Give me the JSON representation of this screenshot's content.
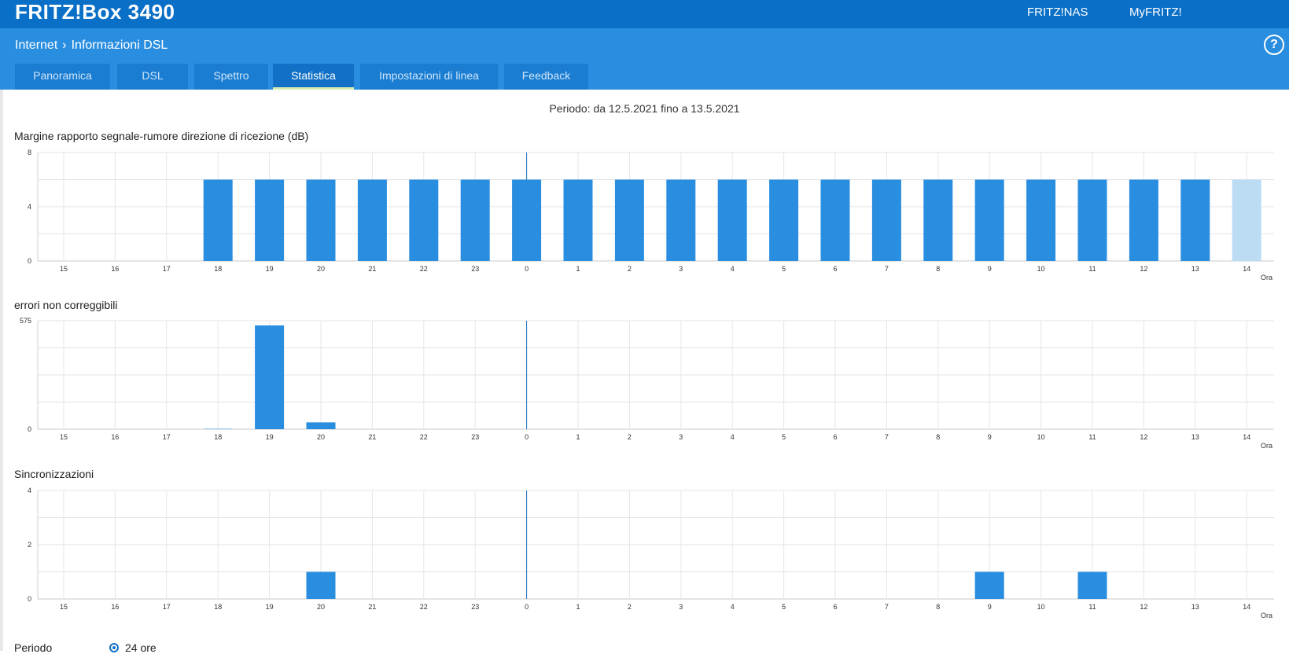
{
  "header": {
    "brand": "FRITZ!Box 3490",
    "links": [
      "FRITZ!NAS",
      "MyFRITZ!"
    ]
  },
  "breadcrumb": {
    "section": "Internet",
    "page": "Informazioni DSL",
    "separator": "›"
  },
  "help_label": "?",
  "tabs": [
    {
      "label": "Panoramica",
      "active": false
    },
    {
      "label": "DSL",
      "active": false
    },
    {
      "label": "Spettro",
      "active": false
    },
    {
      "label": "Statistica",
      "active": true
    },
    {
      "label": "Impostazioni di linea",
      "active": false
    },
    {
      "label": "Feedback",
      "active": false
    }
  ],
  "period_text": "Periodo: da 12.5.2021 fino a 13.5.2021",
  "chart_data": [
    {
      "type": "bar",
      "title": "Margine rapporto segnale-rumore direzione di ricezione (dB)",
      "xunit": "Ora",
      "categories": [
        "15",
        "16",
        "17",
        "18",
        "19",
        "20",
        "21",
        "22",
        "23",
        "0",
        "1",
        "2",
        "3",
        "4",
        "5",
        "6",
        "7",
        "8",
        "9",
        "10",
        "11",
        "12",
        "13",
        "14"
      ],
      "values": [
        0,
        0,
        0,
        6,
        6,
        6,
        6,
        6,
        6,
        6,
        6,
        6,
        6,
        6,
        6,
        6,
        6,
        6,
        6,
        6,
        6,
        6,
        6,
        6
      ],
      "highlight_last": true,
      "ylim": [
        0,
        8
      ],
      "yticks": [
        "0",
        "4",
        "8"
      ],
      "midnight_marker": "0",
      "color": "#2a8ee0",
      "partial_color": "#bcdcf4"
    },
    {
      "type": "bar",
      "title": "errori non correggibili",
      "xunit": "Ora",
      "categories": [
        "15",
        "16",
        "17",
        "18",
        "19",
        "20",
        "21",
        "22",
        "23",
        "0",
        "1",
        "2",
        "3",
        "4",
        "5",
        "6",
        "7",
        "8",
        "9",
        "10",
        "11",
        "12",
        "13",
        "14"
      ],
      "values": [
        0,
        0,
        0,
        2,
        550,
        36,
        0,
        0,
        0,
        0,
        0,
        0,
        0,
        0,
        0,
        0,
        0,
        0,
        0,
        0,
        0,
        0,
        0,
        0
      ],
      "highlight_last": false,
      "ylim": [
        0,
        575
      ],
      "yticks": [
        "0",
        "575"
      ],
      "midnight_marker": "0",
      "color": "#2a8ee0",
      "partial_color": "#bcdcf4"
    },
    {
      "type": "bar",
      "title": "Sincronizzazioni",
      "xunit": "Ora",
      "categories": [
        "15",
        "16",
        "17",
        "18",
        "19",
        "20",
        "21",
        "22",
        "23",
        "0",
        "1",
        "2",
        "3",
        "4",
        "5",
        "6",
        "7",
        "8",
        "9",
        "10",
        "11",
        "12",
        "13",
        "14"
      ],
      "values": [
        0,
        0,
        0,
        0,
        0,
        1,
        0,
        0,
        0,
        0,
        0,
        0,
        0,
        0,
        0,
        0,
        0,
        0,
        1,
        0,
        1,
        0,
        0,
        0
      ],
      "highlight_last": false,
      "ylim": [
        0,
        4
      ],
      "yticks": [
        "0",
        "2",
        "4"
      ],
      "midnight_marker": "0",
      "color": "#2a8ee0",
      "partial_color": "#bcdcf4"
    }
  ],
  "footer": {
    "label": "Periodo",
    "option": "24 ore"
  }
}
